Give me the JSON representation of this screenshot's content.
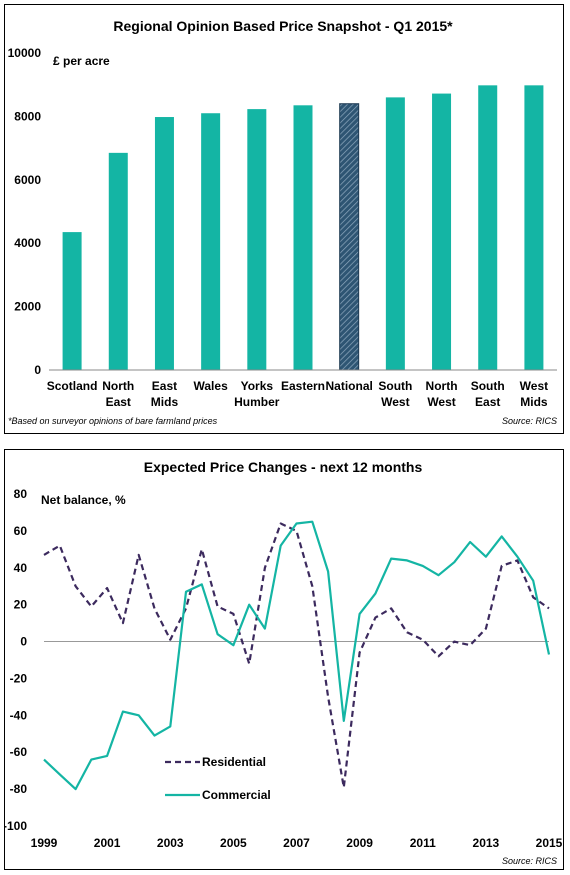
{
  "colors": {
    "teal": "#14B5A4",
    "national": "#2E5573",
    "residential": "#3C2A5E",
    "commercial": "#14B5A4"
  },
  "chart_data": [
    {
      "type": "bar",
      "title": "Regional Opinion Based Price Snapshot - Q1 2015*",
      "ylabel": "£ per acre",
      "ylim": [
        0,
        10000
      ],
      "yticks": [
        "0",
        "2000",
        "4000",
        "6000",
        "8000",
        "10000"
      ],
      "categories": [
        [
          "Scotland"
        ],
        [
          "North",
          "East"
        ],
        [
          "East",
          "Mids"
        ],
        [
          "Wales"
        ],
        [
          "Yorks",
          "Humber"
        ],
        [
          "Eastern"
        ],
        [
          "National"
        ],
        [
          "South",
          "West"
        ],
        [
          "North",
          "West"
        ],
        [
          "South",
          "East"
        ],
        [
          "West",
          "Mids"
        ]
      ],
      "values": [
        4350,
        6850,
        7980,
        8100,
        8230,
        8350,
        8400,
        8600,
        8720,
        8980,
        8980
      ],
      "highlight_index": 6,
      "footnote": "*Based on surveyor opinions of bare farmland prices",
      "source": "Source: RICS"
    },
    {
      "type": "line",
      "title": "Expected Price Changes - next 12 months",
      "ylabel": "Net balance, %",
      "ylim": [
        -100,
        80
      ],
      "yticks": [
        "-100",
        "-80",
        "-60",
        "-40",
        "-20",
        "0",
        "20",
        "40",
        "60",
        "80"
      ],
      "xlim": [
        1999,
        2015
      ],
      "xticks": [
        "1999",
        "2001",
        "2003",
        "2005",
        "2007",
        "2009",
        "2011",
        "2013",
        "2015"
      ],
      "source": "Source: RICS",
      "series": [
        {
          "name": "Residential",
          "style": "dashed",
          "x": [
            1999,
            1999.5,
            2000,
            2000.5,
            2001,
            2001.5,
            2002,
            2002.5,
            2003,
            2003.5,
            2004,
            2004.5,
            2005,
            2005.5,
            2006,
            2006.5,
            2007,
            2007.5,
            2008,
            2008.5,
            2009,
            2009.5,
            2010,
            2010.5,
            2011,
            2011.5,
            2012,
            2012.5,
            2013,
            2013.5,
            2014,
            2014.5,
            2015
          ],
          "y": [
            47,
            52,
            30,
            19,
            29,
            10,
            47,
            18,
            1,
            18,
            50,
            19,
            15,
            -12,
            40,
            64,
            60,
            30,
            -30,
            -79,
            -6,
            13,
            18,
            5,
            1,
            -8,
            0,
            -2,
            7,
            41,
            44,
            24,
            18
          ]
        },
        {
          "name": "Commercial",
          "style": "solid",
          "x": [
            1999,
            1999.5,
            2000,
            2000.5,
            2001,
            2001.5,
            2002,
            2002.5,
            2003,
            2003.5,
            2004,
            2004.5,
            2005,
            2005.5,
            2006,
            2006.5,
            2007,
            2007.5,
            2008,
            2008.5,
            2009,
            2009.5,
            2010,
            2010.5,
            2011,
            2011.5,
            2012,
            2012.5,
            2013,
            2013.5,
            2014,
            2014.5,
            2015
          ],
          "y": [
            -64,
            -72,
            -80,
            -64,
            -62,
            -38,
            -40,
            -51,
            -46,
            27,
            31,
            4,
            -2,
            20,
            7,
            52,
            64,
            65,
            38,
            -43,
            15,
            26,
            45,
            44,
            41,
            36,
            43,
            54,
            46,
            57,
            46,
            33,
            -7
          ]
        }
      ]
    }
  ]
}
